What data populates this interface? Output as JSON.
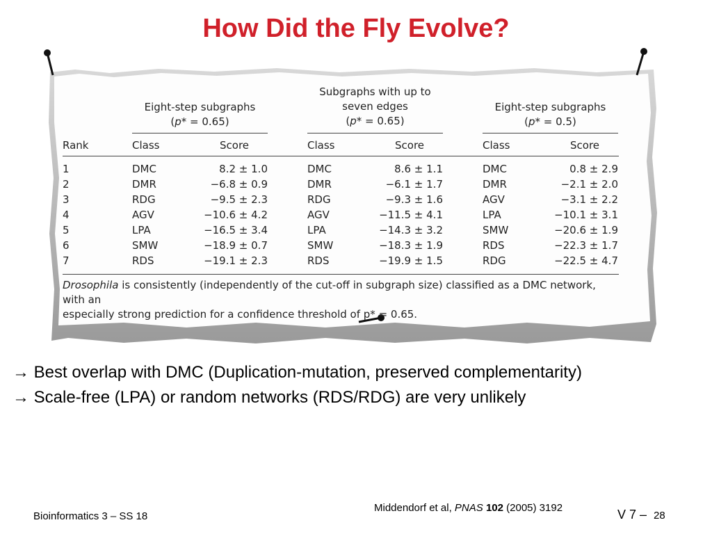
{
  "slide": {
    "title": "How Did the Fly Evolve?",
    "footer_left": "Bioinformatics 3 – SS 18",
    "footer_citation_prefix": "Middendorf et al,",
    "footer_citation_journal": "PNAS",
    "footer_citation_volume": "102",
    "footer_citation_suffix": "(2005) 3192",
    "footer_lecture": "V 7 –",
    "footer_page": "28"
  },
  "table": {
    "rank_header": "Rank",
    "groups": [
      {
        "title_lines": [
          "Eight-step subgraphs",
          "(p* = 0.65)"
        ],
        "class_header": "Class",
        "score_header": "Score"
      },
      {
        "title_lines": [
          "Subgraphs with up to",
          "seven edges",
          "(p* = 0.65)"
        ],
        "class_header": "Class",
        "score_header": "Score"
      },
      {
        "title_lines": [
          "Eight-step subgraphs",
          "(p* = 0.5)"
        ],
        "class_header": "Class",
        "score_header": "Score"
      }
    ],
    "rows": [
      {
        "rank": "1",
        "c1": "DMC",
        "s1": "8.2 ± 1.0",
        "c2": "DMC",
        "s2": "8.6 ± 1.1",
        "c3": "DMC",
        "s3": "0.8 ± 2.9"
      },
      {
        "rank": "2",
        "c1": "DMR",
        "s1": "−6.8 ± 0.9",
        "c2": "DMR",
        "s2": "−6.1 ± 1.7",
        "c3": "DMR",
        "s3": "−2.1 ± 2.0"
      },
      {
        "rank": "3",
        "c1": "RDG",
        "s1": "−9.5 ± 2.3",
        "c2": "RDG",
        "s2": "−9.3 ± 1.6",
        "c3": "AGV",
        "s3": "−3.1 ± 2.2"
      },
      {
        "rank": "4",
        "c1": "AGV",
        "s1": "−10.6 ± 4.2",
        "c2": "AGV",
        "s2": "−11.5 ± 4.1",
        "c3": "LPA",
        "s3": "−10.1 ± 3.1"
      },
      {
        "rank": "5",
        "c1": "LPA",
        "s1": "−16.5 ± 3.4",
        "c2": "LPA",
        "s2": "−14.3 ± 3.2",
        "c3": "SMW",
        "s3": "−20.6 ± 1.9"
      },
      {
        "rank": "6",
        "c1": "SMW",
        "s1": "−18.9 ± 0.7",
        "c2": "SMW",
        "s2": "−18.3 ± 1.9",
        "c3": "RDS",
        "s3": "−22.3 ± 1.7"
      },
      {
        "rank": "7",
        "c1": "RDS",
        "s1": "−19.1 ± 2.3",
        "c2": "RDS",
        "s2": "−19.9 ± 1.5",
        "c3": "RDG",
        "s3": "−22.5 ± 4.7"
      }
    ],
    "caption_italic": "Drosophila",
    "caption_rest_line1": " is consistently (independently of the cut-off in subgraph size) classified as a DMC network, with an",
    "caption_line2": "especially strong prediction for a confidence threshold of p* = 0.65."
  },
  "bullets": [
    "→ Best overlap with DMC (Duplication-mutation, preserved complementarity)",
    "→ Scale-free (LPA) or random networks (RDS/RDG) are very unlikely"
  ]
}
